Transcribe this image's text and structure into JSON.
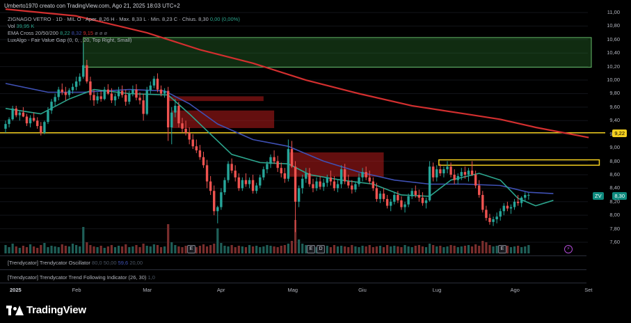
{
  "header": {
    "byline": "Umberto1970 creato con TradingView.com, Ago 21, 2025 18:03 UTC+2",
    "symbol_line": {
      "name": "ZIGNAGO VETRO · 1D · MIL",
      "open": "O · Aper. 8,26",
      "high": "H · Max. 8,33",
      "low": "L · Min. 8,23",
      "close": "C · Chius. 8,30",
      "change": "0,00 (0,00%)"
    },
    "vol_label": "Vol",
    "vol_value": "39,95 K",
    "ema_label": "EMA Cross 20/50/200",
    "ema20": "8,22",
    "ema50": "8,32",
    "ema200": "9,15",
    "ema_extra": "ø ø ø",
    "fvg_label": "LuxAlgo - Fair Value Gap (0, 0, , 20, Top Right, Small)"
  },
  "panels": {
    "oscillator_label": "[Trendycator] Trendycator Oscillator",
    "oscillator_v1": "80,0",
    "oscillator_v2": "50,00",
    "oscillator_v3": "59,6",
    "oscillator_v4": "20,00",
    "trend_label": "[Trendycator] Trendycator Trend Following Indicator (26, 30)",
    "trend_value": "1,0"
  },
  "badges": {
    "yellow_level": "9,22",
    "last_price": "8,30",
    "symbol_short": "ZV"
  },
  "events": [
    "E",
    "E",
    "D",
    "E"
  ],
  "bolt": "⚡",
  "logo": {
    "name": "TradingView",
    "icon": "tradingview-logo-icon"
  },
  "colors": {
    "background": "#000000",
    "up": "#26a69a",
    "down": "#ef5350",
    "ema20": "#2ca58d",
    "ema50": "#3f51b5",
    "ema200": "#d32f2f",
    "fvg_bull": "#2e7d32",
    "fvg_bear": "#b71c1c",
    "hline": "#f5d020"
  },
  "chart_data": {
    "type": "candlestick",
    "currency_unit": "EUR",
    "y_ticks": [
      "11,00",
      "10,80",
      "10,60",
      "10,40",
      "10,20",
      "10,00",
      "9,80",
      "9,60",
      "9,40",
      "9,20",
      "9,00",
      "8,80",
      "8,60",
      "8,40",
      "8,20",
      "8,00",
      "7,80",
      "7,60"
    ],
    "ylim": [
      7.5,
      11.0
    ],
    "x_ticks": [
      {
        "label": "2025",
        "index": 0,
        "bold": true
      },
      {
        "label": "Feb",
        "index": 20
      },
      {
        "label": "Mar",
        "index": 40
      },
      {
        "label": "Apr",
        "index": 61
      },
      {
        "label": "Mag",
        "index": 81
      },
      {
        "label": "Giu",
        "index": 101
      },
      {
        "label": "Lug",
        "index": 122
      },
      {
        "label": "Ago",
        "index": 144
      },
      {
        "label": "Set",
        "index": 165
      }
    ],
    "candles": [
      [
        9.28,
        9.4,
        9.22,
        9.35
      ],
      [
        9.35,
        9.45,
        9.3,
        9.42
      ],
      [
        9.42,
        9.62,
        9.4,
        9.58
      ],
      [
        9.58,
        9.62,
        9.45,
        9.48
      ],
      [
        9.48,
        9.55,
        9.4,
        9.52
      ],
      [
        9.52,
        9.6,
        9.45,
        9.46
      ],
      [
        9.46,
        9.5,
        9.32,
        9.36
      ],
      [
        9.36,
        9.48,
        9.3,
        9.44
      ],
      [
        9.44,
        9.52,
        9.38,
        9.4
      ],
      [
        9.4,
        9.45,
        9.28,
        9.32
      ],
      [
        9.32,
        9.38,
        9.18,
        9.22
      ],
      [
        9.22,
        9.4,
        9.2,
        9.38
      ],
      [
        9.38,
        9.6,
        9.35,
        9.55
      ],
      [
        9.55,
        9.72,
        9.5,
        9.68
      ],
      [
        9.68,
        9.8,
        9.62,
        9.75
      ],
      [
        9.75,
        9.9,
        9.7,
        9.86
      ],
      [
        9.86,
        9.95,
        9.78,
        9.82
      ],
      [
        9.82,
        9.9,
        9.7,
        9.78
      ],
      [
        9.78,
        9.88,
        9.74,
        9.85
      ],
      [
        9.85,
        9.95,
        9.8,
        9.9
      ],
      [
        9.9,
        10.05,
        9.85,
        9.98
      ],
      [
        9.98,
        10.1,
        9.92,
        10.05
      ],
      [
        10.05,
        10.55,
        10.02,
        10.22
      ],
      [
        10.22,
        10.3,
        9.95,
        9.98
      ],
      [
        9.98,
        10.05,
        9.7,
        9.78
      ],
      [
        9.78,
        9.85,
        9.62,
        9.7
      ],
      [
        9.7,
        9.82,
        9.65,
        9.76
      ],
      [
        9.76,
        9.84,
        9.68,
        9.72
      ],
      [
        9.72,
        9.9,
        9.7,
        9.86
      ],
      [
        9.86,
        9.94,
        9.78,
        9.8
      ],
      [
        9.8,
        9.88,
        9.66,
        9.7
      ],
      [
        9.7,
        9.8,
        9.62,
        9.76
      ],
      [
        9.76,
        9.9,
        9.72,
        9.84
      ],
      [
        9.84,
        9.92,
        9.74,
        9.78
      ],
      [
        9.78,
        9.86,
        9.62,
        9.68
      ],
      [
        9.68,
        9.84,
        9.64,
        9.8
      ],
      [
        9.8,
        9.92,
        9.76,
        9.86
      ],
      [
        9.86,
        9.94,
        9.7,
        9.74
      ],
      [
        9.74,
        9.82,
        9.64,
        9.7
      ],
      [
        9.7,
        9.8,
        9.4,
        9.5
      ],
      [
        9.5,
        9.9,
        9.48,
        9.85
      ],
      [
        9.85,
        9.98,
        9.8,
        9.92
      ],
      [
        9.92,
        10.06,
        9.88,
        10.02
      ],
      [
        10.02,
        10.1,
        9.82,
        9.86
      ],
      [
        9.86,
        9.92,
        9.76,
        9.8
      ],
      [
        9.8,
        9.88,
        9.74,
        9.84
      ],
      [
        9.84,
        9.9,
        9.1,
        9.3
      ],
      [
        9.3,
        9.6,
        9.05,
        9.52
      ],
      [
        9.52,
        9.72,
        9.45,
        9.62
      ],
      [
        9.62,
        9.68,
        9.3,
        9.36
      ],
      [
        9.36,
        9.44,
        9.22,
        9.28
      ],
      [
        9.28,
        9.4,
        9.18,
        9.22
      ],
      [
        9.22,
        9.3,
        9.05,
        9.12
      ],
      [
        9.12,
        9.2,
        8.98,
        9.02
      ],
      [
        9.02,
        9.12,
        8.92,
        8.96
      ],
      [
        8.96,
        9.04,
        8.82,
        8.86
      ],
      [
        8.86,
        8.94,
        8.7,
        8.74
      ],
      [
        8.74,
        8.82,
        8.4,
        8.5
      ],
      [
        8.5,
        8.58,
        8.3,
        8.36
      ],
      [
        8.36,
        8.44,
        8.0,
        8.06
      ],
      [
        8.06,
        8.14,
        7.88,
        8.12
      ],
      [
        8.12,
        8.4,
        8.08,
        8.34
      ],
      [
        8.34,
        8.56,
        8.3,
        8.52
      ],
      [
        8.52,
        8.8,
        8.48,
        8.76
      ],
      [
        8.76,
        8.84,
        8.62,
        8.66
      ],
      [
        8.66,
        8.74,
        8.5,
        8.56
      ],
      [
        8.56,
        8.62,
        8.36,
        8.4
      ],
      [
        8.4,
        8.56,
        8.36,
        8.52
      ],
      [
        8.52,
        8.62,
        8.42,
        8.46
      ],
      [
        8.46,
        8.56,
        8.4,
        8.52
      ],
      [
        8.52,
        8.6,
        8.32,
        8.36
      ],
      [
        8.36,
        8.48,
        8.32,
        8.44
      ],
      [
        8.44,
        8.6,
        8.4,
        8.56
      ],
      [
        8.56,
        8.72,
        8.52,
        8.68
      ],
      [
        8.68,
        8.8,
        8.62,
        8.76
      ],
      [
        8.76,
        8.9,
        8.7,
        8.86
      ],
      [
        8.86,
        8.96,
        8.76,
        8.8
      ],
      [
        8.8,
        8.88,
        8.64,
        8.7
      ],
      [
        8.7,
        8.78,
        8.56,
        8.62
      ],
      [
        8.62,
        8.7,
        8.48,
        8.54
      ],
      [
        8.54,
        9.12,
        8.5,
        8.98
      ],
      [
        8.98,
        9.1,
        8.7,
        8.72
      ],
      [
        8.72,
        8.8,
        7.75,
        8.2
      ],
      [
        8.2,
        8.44,
        8.12,
        8.4
      ],
      [
        8.4,
        8.6,
        8.32,
        8.54
      ],
      [
        8.54,
        8.7,
        8.48,
        8.62
      ],
      [
        8.62,
        8.7,
        8.42,
        8.46
      ],
      [
        8.46,
        8.54,
        8.34,
        8.4
      ],
      [
        8.4,
        8.56,
        8.36,
        8.5
      ],
      [
        8.5,
        8.58,
        8.38,
        8.42
      ],
      [
        8.42,
        8.54,
        8.36,
        8.48
      ],
      [
        8.48,
        8.6,
        8.42,
        8.56
      ],
      [
        8.56,
        8.66,
        8.44,
        8.5
      ],
      [
        8.5,
        8.58,
        8.36,
        8.4
      ],
      [
        8.4,
        8.52,
        8.34,
        8.46
      ],
      [
        8.46,
        8.74,
        8.4,
        8.68
      ],
      [
        8.68,
        8.76,
        8.46,
        8.5
      ],
      [
        8.5,
        8.6,
        8.4,
        8.44
      ],
      [
        8.44,
        8.52,
        8.32,
        8.38
      ],
      [
        8.38,
        8.5,
        8.34,
        8.46
      ],
      [
        8.46,
        8.62,
        8.42,
        8.56
      ],
      [
        8.56,
        8.7,
        8.5,
        8.64
      ],
      [
        8.64,
        8.72,
        8.52,
        8.56
      ],
      [
        8.56,
        8.66,
        8.46,
        8.5
      ],
      [
        8.5,
        8.56,
        8.36,
        8.4
      ],
      [
        8.4,
        8.48,
        8.2,
        8.24
      ],
      [
        8.24,
        8.36,
        8.18,
        8.32
      ],
      [
        8.32,
        8.4,
        8.2,
        8.24
      ],
      [
        8.24,
        8.3,
        8.1,
        8.14
      ],
      [
        8.14,
        8.24,
        8.06,
        8.2
      ],
      [
        8.2,
        8.34,
        8.16,
        8.3
      ],
      [
        8.3,
        8.36,
        8.18,
        8.22
      ],
      [
        8.22,
        8.28,
        8.08,
        8.12
      ],
      [
        8.12,
        8.2,
        8.04,
        8.16
      ],
      [
        8.16,
        8.32,
        8.12,
        8.28
      ],
      [
        8.28,
        8.4,
        8.24,
        8.36
      ],
      [
        8.36,
        8.44,
        8.26,
        8.3
      ],
      [
        8.3,
        8.38,
        8.2,
        8.26
      ],
      [
        8.26,
        8.34,
        8.14,
        8.18
      ],
      [
        8.18,
        8.26,
        8.1,
        8.22
      ],
      [
        8.22,
        8.8,
        8.2,
        8.72
      ],
      [
        8.72,
        8.78,
        8.5,
        8.56
      ],
      [
        8.56,
        8.74,
        8.5,
        8.68
      ],
      [
        8.68,
        8.76,
        8.58,
        8.62
      ],
      [
        8.62,
        8.72,
        8.56,
        8.68
      ],
      [
        8.68,
        8.8,
        8.62,
        8.72
      ],
      [
        8.72,
        8.78,
        8.56,
        8.6
      ],
      [
        8.6,
        8.68,
        8.46,
        8.52
      ],
      [
        8.52,
        8.62,
        8.46,
        8.58
      ],
      [
        8.58,
        8.7,
        8.52,
        8.64
      ],
      [
        8.64,
        8.72,
        8.54,
        8.6
      ],
      [
        8.6,
        8.7,
        8.5,
        8.66
      ],
      [
        8.66,
        8.8,
        8.58,
        8.6
      ],
      [
        8.6,
        8.66,
        8.4,
        8.44
      ],
      [
        8.44,
        8.52,
        8.26,
        8.3
      ],
      [
        8.3,
        8.36,
        8.04,
        8.08
      ],
      [
        8.08,
        8.14,
        7.92,
        7.96
      ],
      [
        7.96,
        8.02,
        7.86,
        7.9
      ],
      [
        7.9,
        7.98,
        7.84,
        7.94
      ],
      [
        7.94,
        8.04,
        7.88,
        7.98
      ],
      [
        7.98,
        8.1,
        7.92,
        8.06
      ],
      [
        8.06,
        8.18,
        8.0,
        8.14
      ],
      [
        8.14,
        8.2,
        8.06,
        8.1
      ],
      [
        8.1,
        8.16,
        8.02,
        8.12
      ],
      [
        8.12,
        8.24,
        8.08,
        8.2
      ],
      [
        8.2,
        8.3,
        8.14,
        8.18
      ],
      [
        8.18,
        8.28,
        8.12,
        8.26
      ],
      [
        8.26,
        8.34,
        8.2,
        8.3
      ],
      [
        8.3,
        8.33,
        8.23,
        8.3
      ]
    ],
    "ema200_points": [
      [
        0,
        11.05
      ],
      [
        20,
        10.95
      ],
      [
        40,
        10.7
      ],
      [
        55,
        10.45
      ],
      [
        70,
        10.25
      ],
      [
        85,
        10.0
      ],
      [
        100,
        9.8
      ],
      [
        115,
        9.62
      ],
      [
        130,
        9.5
      ],
      [
        140,
        9.42
      ],
      [
        150,
        9.3
      ],
      [
        165,
        9.15
      ]
    ],
    "ema50_points": [
      [
        0,
        9.95
      ],
      [
        12,
        9.82
      ],
      [
        22,
        9.82
      ],
      [
        35,
        9.86
      ],
      [
        45,
        9.84
      ],
      [
        52,
        9.65
      ],
      [
        60,
        9.35
      ],
      [
        70,
        9.12
      ],
      [
        80,
        9.02
      ],
      [
        90,
        8.8
      ],
      [
        100,
        8.64
      ],
      [
        110,
        8.52
      ],
      [
        120,
        8.46
      ],
      [
        130,
        8.46
      ],
      [
        140,
        8.44
      ],
      [
        148,
        8.34
      ],
      [
        155,
        8.32
      ]
    ],
    "ema20_points": [
      [
        0,
        9.58
      ],
      [
        10,
        9.5
      ],
      [
        18,
        9.72
      ],
      [
        25,
        9.86
      ],
      [
        35,
        9.8
      ],
      [
        46,
        9.78
      ],
      [
        52,
        9.5
      ],
      [
        58,
        9.2
      ],
      [
        64,
        8.9
      ],
      [
        72,
        8.78
      ],
      [
        80,
        8.76
      ],
      [
        86,
        8.6
      ],
      [
        95,
        8.52
      ],
      [
        104,
        8.46
      ],
      [
        112,
        8.3
      ],
      [
        120,
        8.28
      ],
      [
        126,
        8.52
      ],
      [
        134,
        8.62
      ],
      [
        140,
        8.52
      ],
      [
        145,
        8.25
      ],
      [
        150,
        8.14
      ],
      [
        155,
        8.22
      ]
    ],
    "fvg_zones": [
      {
        "kind": "bull",
        "from": 22,
        "to": 167,
        "top": 10.63,
        "bottom": 10.19
      },
      {
        "kind": "bear",
        "from": 46,
        "to": 73,
        "top": 9.76,
        "bottom": 9.69
      },
      {
        "kind": "bear",
        "from": 47,
        "to": 76,
        "top": 9.55,
        "bottom": 9.29
      },
      {
        "kind": "bear",
        "from": 80,
        "to": 107,
        "top": 8.93,
        "bottom": 8.57
      }
    ],
    "hline": 9.22,
    "yellow_box": {
      "from": 123,
      "to": 168,
      "top": 8.82,
      "bottom": 8.74
    },
    "volume": [
      12,
      9,
      14,
      10,
      8,
      11,
      9,
      13,
      10,
      8,
      12,
      15,
      9,
      11,
      10,
      9,
      13,
      11,
      10,
      14,
      12,
      10,
      38,
      16,
      12,
      10,
      9,
      11,
      8,
      10,
      12,
      9,
      11,
      10,
      13,
      9,
      10,
      12,
      9,
      14,
      11,
      10,
      13,
      12,
      9,
      10,
      42,
      16,
      12,
      10,
      9,
      11,
      10,
      8,
      9,
      11,
      13,
      10,
      12,
      14,
      36,
      15,
      11,
      10,
      12,
      9,
      11,
      10,
      9,
      12,
      10,
      11,
      9,
      10,
      12,
      11,
      10,
      9,
      11,
      12,
      14,
      18,
      48,
      20,
      14,
      12,
      11,
      10,
      9,
      12,
      10,
      11,
      9,
      12,
      10,
      11,
      10,
      9,
      12,
      10,
      9,
      11,
      10,
      12,
      9,
      10,
      11,
      9,
      12,
      10,
      11,
      10,
      9,
      12,
      10,
      9,
      11,
      12,
      10,
      9,
      14,
      12,
      10,
      11,
      9,
      10,
      12,
      11,
      9,
      10,
      11,
      12,
      10,
      13,
      11,
      18,
      16,
      12,
      10,
      11,
      9,
      10,
      11,
      9,
      10,
      11,
      9,
      10,
      12
    ]
  }
}
